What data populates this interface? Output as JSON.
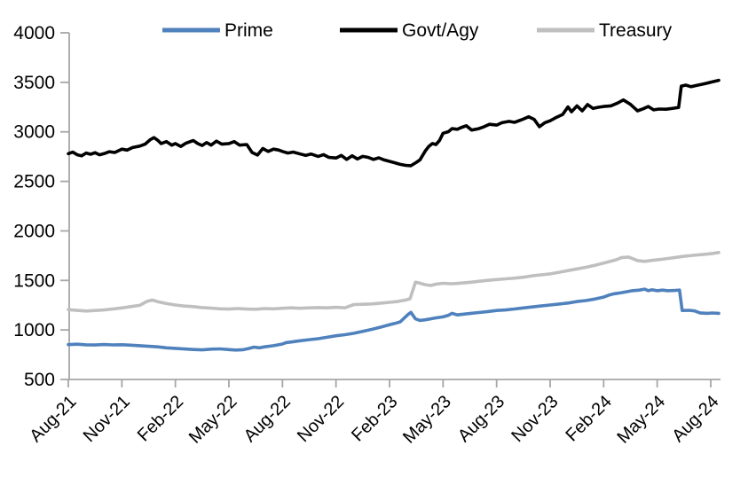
{
  "chart_data": {
    "type": "line",
    "title": "",
    "xlabel": "",
    "ylabel": "",
    "x_axis": {
      "unit": "months_since_Aug_2021",
      "tick_positions_months": [
        0,
        3,
        6,
        9,
        12,
        15,
        18,
        21,
        24,
        27,
        30,
        33,
        36
      ],
      "tick_labels": [
        "Aug-21",
        "Nov-21",
        "Feb-22",
        "May-22",
        "Aug-22",
        "Nov-22",
        "Feb-23",
        "May-23",
        "Aug-23",
        "Nov-23",
        "Feb-24",
        "May-24",
        "Aug-24"
      ],
      "label_rotation_deg": -45
    },
    "y_axis": {
      "min": 500,
      "max": 4000,
      "tick_step": 500,
      "tick_labels": [
        "500",
        "1000",
        "1500",
        "2000",
        "2500",
        "3000",
        "3500",
        "4000"
      ],
      "gridlines": false
    },
    "legend": {
      "position": "top",
      "entries": [
        {
          "label": "Prime",
          "color": "#4F81BD"
        },
        {
          "label": "Govt/Agy",
          "color": "#000000"
        },
        {
          "label": "Treasury",
          "color": "#BFBFBF"
        }
      ]
    },
    "colors": {
      "axis": "#A6A6A6",
      "text": "#000000",
      "background": "#FFFFFF",
      "prime": "#4F81BD",
      "govt_agy": "#000000",
      "treasury": "#BFBFBF"
    },
    "series": [
      {
        "name": "Prime",
        "color": "#4F81BD",
        "points": [
          [
            0,
            852
          ],
          [
            0.5,
            856
          ],
          [
            1,
            850
          ],
          [
            1.5,
            848
          ],
          [
            2,
            853
          ],
          [
            2.5,
            849
          ],
          [
            3,
            851
          ],
          [
            3.5,
            846
          ],
          [
            4,
            841
          ],
          [
            4.5,
            835
          ],
          [
            5,
            829
          ],
          [
            5.5,
            820
          ],
          [
            6,
            814
          ],
          [
            6.5,
            808
          ],
          [
            7,
            803
          ],
          [
            7.5,
            799
          ],
          [
            8,
            806
          ],
          [
            8.5,
            809
          ],
          [
            9,
            802
          ],
          [
            9.4,
            797
          ],
          [
            9.8,
            801
          ],
          [
            10.1,
            812
          ],
          [
            10.4,
            827
          ],
          [
            10.7,
            820
          ],
          [
            11,
            829
          ],
          [
            11.5,
            841
          ],
          [
            12,
            858
          ],
          [
            12.2,
            872
          ],
          [
            12.5,
            879
          ],
          [
            13,
            891
          ],
          [
            13.5,
            902
          ],
          [
            14,
            912
          ],
          [
            14.5,
            926
          ],
          [
            15,
            941
          ],
          [
            15.5,
            952
          ],
          [
            16,
            966
          ],
          [
            16.5,
            986
          ],
          [
            17,
            1006
          ],
          [
            17.5,
            1028
          ],
          [
            18,
            1052
          ],
          [
            18.3,
            1066
          ],
          [
            18.6,
            1082
          ],
          [
            18.85,
            1125
          ],
          [
            19.05,
            1158
          ],
          [
            19.2,
            1178
          ],
          [
            19.45,
            1112
          ],
          [
            19.7,
            1096
          ],
          [
            20,
            1102
          ],
          [
            20.3,
            1112
          ],
          [
            20.6,
            1122
          ],
          [
            21,
            1132
          ],
          [
            21.3,
            1148
          ],
          [
            21.5,
            1168
          ],
          [
            21.8,
            1152
          ],
          [
            22,
            1156
          ],
          [
            22.5,
            1166
          ],
          [
            23,
            1176
          ],
          [
            23.5,
            1186
          ],
          [
            24,
            1196
          ],
          [
            24.5,
            1202
          ],
          [
            25,
            1212
          ],
          [
            25.5,
            1222
          ],
          [
            26,
            1232
          ],
          [
            26.5,
            1242
          ],
          [
            27,
            1252
          ],
          [
            27.5,
            1262
          ],
          [
            28,
            1272
          ],
          [
            28.5,
            1287
          ],
          [
            29,
            1297
          ],
          [
            29.5,
            1312
          ],
          [
            30,
            1332
          ],
          [
            30.3,
            1352
          ],
          [
            30.6,
            1366
          ],
          [
            31,
            1376
          ],
          [
            31.3,
            1386
          ],
          [
            31.6,
            1396
          ],
          [
            32,
            1402
          ],
          [
            32.3,
            1412
          ],
          [
            32.5,
            1396
          ],
          [
            32.7,
            1406
          ],
          [
            33,
            1396
          ],
          [
            33.3,
            1402
          ],
          [
            33.6,
            1396
          ],
          [
            34,
            1399
          ],
          [
            34.25,
            1402
          ],
          [
            34.4,
            1196
          ],
          [
            34.8,
            1198
          ],
          [
            35.1,
            1192
          ],
          [
            35.4,
            1172
          ],
          [
            35.8,
            1168
          ],
          [
            36.1,
            1171
          ],
          [
            36.45,
            1168
          ]
        ]
      },
      {
        "name": "Govt/Agy",
        "color": "#000000",
        "points": [
          [
            0,
            2780
          ],
          [
            0.25,
            2795
          ],
          [
            0.5,
            2768
          ],
          [
            0.75,
            2758
          ],
          [
            1,
            2786
          ],
          [
            1.25,
            2774
          ],
          [
            1.5,
            2790
          ],
          [
            1.75,
            2768
          ],
          [
            2,
            2780
          ],
          [
            2.3,
            2800
          ],
          [
            2.6,
            2792
          ],
          [
            3,
            2826
          ],
          [
            3.3,
            2816
          ],
          [
            3.6,
            2842
          ],
          [
            4,
            2856
          ],
          [
            4.3,
            2876
          ],
          [
            4.6,
            2922
          ],
          [
            4.8,
            2942
          ],
          [
            5,
            2916
          ],
          [
            5.2,
            2882
          ],
          [
            5.5,
            2902
          ],
          [
            5.8,
            2866
          ],
          [
            6,
            2882
          ],
          [
            6.3,
            2852
          ],
          [
            6.6,
            2886
          ],
          [
            7,
            2912
          ],
          [
            7.25,
            2882
          ],
          [
            7.5,
            2862
          ],
          [
            7.75,
            2892
          ],
          [
            8,
            2866
          ],
          [
            8.3,
            2906
          ],
          [
            8.6,
            2876
          ],
          [
            9,
            2882
          ],
          [
            9.3,
            2902
          ],
          [
            9.6,
            2866
          ],
          [
            10,
            2872
          ],
          [
            10.3,
            2792
          ],
          [
            10.6,
            2766
          ],
          [
            10.9,
            2832
          ],
          [
            11.2,
            2802
          ],
          [
            11.5,
            2826
          ],
          [
            11.8,
            2816
          ],
          [
            12,
            2802
          ],
          [
            12.3,
            2786
          ],
          [
            12.6,
            2796
          ],
          [
            13,
            2776
          ],
          [
            13.3,
            2762
          ],
          [
            13.6,
            2776
          ],
          [
            14,
            2752
          ],
          [
            14.3,
            2770
          ],
          [
            14.6,
            2742
          ],
          [
            15,
            2736
          ],
          [
            15.3,
            2762
          ],
          [
            15.6,
            2722
          ],
          [
            15.9,
            2758
          ],
          [
            16.2,
            2726
          ],
          [
            16.5,
            2752
          ],
          [
            16.8,
            2742
          ],
          [
            17.1,
            2722
          ],
          [
            17.4,
            2738
          ],
          [
            17.7,
            2716
          ],
          [
            18,
            2702
          ],
          [
            18.3,
            2688
          ],
          [
            18.6,
            2672
          ],
          [
            18.9,
            2662
          ],
          [
            19.2,
            2658
          ],
          [
            19.5,
            2692
          ],
          [
            19.7,
            2716
          ],
          [
            20,
            2806
          ],
          [
            20.2,
            2852
          ],
          [
            20.4,
            2882
          ],
          [
            20.6,
            2872
          ],
          [
            20.8,
            2912
          ],
          [
            21,
            2986
          ],
          [
            21.3,
            3002
          ],
          [
            21.5,
            3032
          ],
          [
            21.8,
            3026
          ],
          [
            22,
            3042
          ],
          [
            22.3,
            3062
          ],
          [
            22.6,
            3018
          ],
          [
            23,
            3032
          ],
          [
            23.3,
            3052
          ],
          [
            23.6,
            3076
          ],
          [
            24,
            3068
          ],
          [
            24.3,
            3092
          ],
          [
            24.7,
            3106
          ],
          [
            25,
            3096
          ],
          [
            25.4,
            3122
          ],
          [
            25.8,
            3152
          ],
          [
            26.1,
            3126
          ],
          [
            26.4,
            3052
          ],
          [
            26.7,
            3092
          ],
          [
            27,
            3112
          ],
          [
            27.3,
            3142
          ],
          [
            27.7,
            3176
          ],
          [
            28,
            3252
          ],
          [
            28.2,
            3202
          ],
          [
            28.5,
            3262
          ],
          [
            28.8,
            3212
          ],
          [
            29.1,
            3276
          ],
          [
            29.4,
            3236
          ],
          [
            29.7,
            3248
          ],
          [
            30,
            3256
          ],
          [
            30.4,
            3262
          ],
          [
            30.8,
            3292
          ],
          [
            31.1,
            3322
          ],
          [
            31.5,
            3278
          ],
          [
            31.9,
            3212
          ],
          [
            32.2,
            3232
          ],
          [
            32.5,
            3256
          ],
          [
            32.8,
            3222
          ],
          [
            33.1,
            3230
          ],
          [
            33.5,
            3228
          ],
          [
            33.9,
            3238
          ],
          [
            34.2,
            3246
          ],
          [
            34.35,
            3462
          ],
          [
            34.6,
            3472
          ],
          [
            34.9,
            3456
          ],
          [
            35.2,
            3468
          ],
          [
            35.5,
            3480
          ],
          [
            35.8,
            3492
          ],
          [
            36.1,
            3506
          ],
          [
            36.45,
            3520
          ]
        ]
      },
      {
        "name": "Treasury",
        "color": "#BFBFBF",
        "points": [
          [
            0,
            1205
          ],
          [
            0.5,
            1197
          ],
          [
            1,
            1191
          ],
          [
            1.5,
            1196
          ],
          [
            2,
            1202
          ],
          [
            2.5,
            1212
          ],
          [
            3,
            1222
          ],
          [
            3.5,
            1236
          ],
          [
            4,
            1248
          ],
          [
            4.4,
            1288
          ],
          [
            4.7,
            1302
          ],
          [
            5,
            1286
          ],
          [
            5.5,
            1266
          ],
          [
            6,
            1252
          ],
          [
            6.5,
            1241
          ],
          [
            7,
            1236
          ],
          [
            7.5,
            1226
          ],
          [
            8,
            1221
          ],
          [
            8.5,
            1213
          ],
          [
            9,
            1211
          ],
          [
            9.5,
            1216
          ],
          [
            10,
            1211
          ],
          [
            10.5,
            1209
          ],
          [
            11,
            1216
          ],
          [
            11.5,
            1213
          ],
          [
            12,
            1219
          ],
          [
            12.5,
            1223
          ],
          [
            13,
            1219
          ],
          [
            13.5,
            1223
          ],
          [
            14,
            1226
          ],
          [
            14.5,
            1223
          ],
          [
            15,
            1229
          ],
          [
            15.5,
            1223
          ],
          [
            16,
            1256
          ],
          [
            16.5,
            1259
          ],
          [
            17,
            1263
          ],
          [
            17.5,
            1271
          ],
          [
            18,
            1279
          ],
          [
            18.5,
            1289
          ],
          [
            18.9,
            1302
          ],
          [
            19.15,
            1315
          ],
          [
            19.45,
            1482
          ],
          [
            19.7,
            1472
          ],
          [
            20,
            1457
          ],
          [
            20.3,
            1449
          ],
          [
            20.6,
            1462
          ],
          [
            21,
            1471
          ],
          [
            21.5,
            1466
          ],
          [
            22,
            1473
          ],
          [
            22.5,
            1481
          ],
          [
            23,
            1491
          ],
          [
            23.5,
            1501
          ],
          [
            24,
            1509
          ],
          [
            24.5,
            1516
          ],
          [
            25,
            1523
          ],
          [
            25.5,
            1532
          ],
          [
            26,
            1546
          ],
          [
            26.5,
            1556
          ],
          [
            27,
            1566
          ],
          [
            27.5,
            1582
          ],
          [
            28,
            1599
          ],
          [
            28.5,
            1616
          ],
          [
            29,
            1632
          ],
          [
            29.5,
            1652
          ],
          [
            30,
            1674
          ],
          [
            30.4,
            1694
          ],
          [
            30.7,
            1708
          ],
          [
            31,
            1730
          ],
          [
            31.4,
            1736
          ],
          [
            31.9,
            1700
          ],
          [
            32.3,
            1692
          ],
          [
            32.7,
            1702
          ],
          [
            33.2,
            1712
          ],
          [
            33.8,
            1726
          ],
          [
            34.4,
            1742
          ],
          [
            35,
            1753
          ],
          [
            35.6,
            1763
          ],
          [
            36.1,
            1772
          ],
          [
            36.45,
            1782
          ]
        ]
      }
    ]
  }
}
